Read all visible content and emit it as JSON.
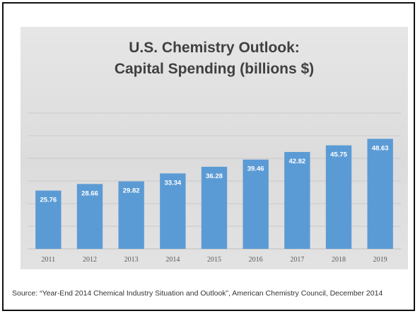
{
  "source_text": "Source: “Year-End 2014 Chemical Industry Situation and Outlook”, American Chemistry Council, December 2014",
  "colors": {
    "bar": "#5b9bd5",
    "bar_label": "#ffffff",
    "panel": "#dedede",
    "gridline": "#c9c9c9",
    "title": "#404040"
  },
  "chart_data": {
    "type": "bar",
    "title_lines": [
      "U.S. Chemistry Outlook:",
      "Capital Spending (billions $)"
    ],
    "categories": [
      "2011",
      "2012",
      "2013",
      "2014",
      "2015",
      "2016",
      "2017",
      "2018",
      "2019"
    ],
    "values": [
      25.76,
      28.66,
      29.82,
      33.34,
      36.28,
      39.46,
      42.82,
      45.75,
      48.63
    ],
    "labels": [
      "25.76",
      "28.66",
      "29.82",
      "33.34",
      "36.28",
      "39.46",
      "42.82",
      "45.75",
      "48.63"
    ],
    "xlabel": "",
    "ylabel": "",
    "ylim": [
      0,
      60
    ],
    "grid": true,
    "legend": "none"
  }
}
